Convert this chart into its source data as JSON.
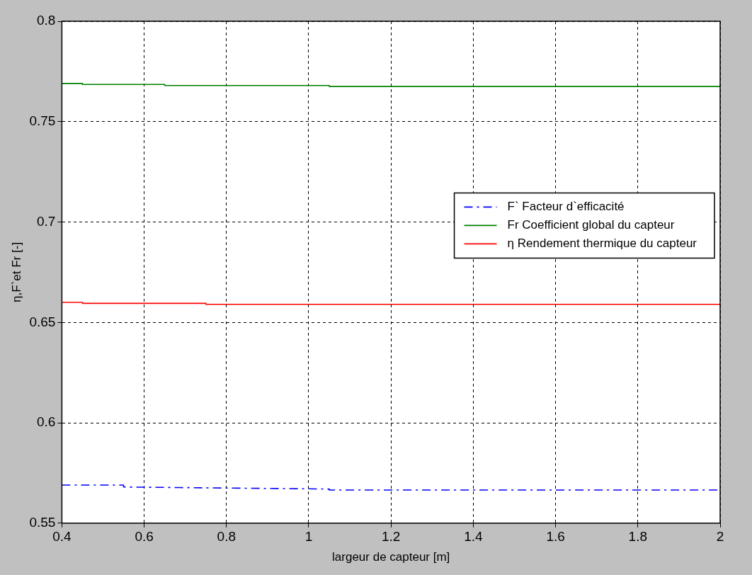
{
  "chart_data": {
    "type": "line",
    "xlabel": "largeur de capteur [m]",
    "ylabel": "η,F`et Fr [-]",
    "xlim": [
      0.4,
      2
    ],
    "xticks": [
      0.4,
      0.6,
      0.8,
      1,
      1.2,
      1.4,
      1.6,
      1.8,
      2
    ],
    "ylim": [
      0.55,
      0.8
    ],
    "yticks": [
      0.55,
      0.6,
      0.65,
      0.7,
      0.75,
      0.8
    ],
    "grid": true,
    "legend": "right",
    "marker": "none",
    "series": [
      {
        "name": "F` Facteur d`efficacité",
        "color": "#0000ff",
        "line_style": "dashed",
        "x": [
          0.4,
          0.55,
          0.55,
          1.05,
          1.05,
          2
        ],
        "values": [
          0.569,
          0.569,
          0.568,
          0.567,
          0.5665,
          0.5665
        ]
      },
      {
        "name": "Fr Coefficient global du capteur",
        "color": "#008000",
        "line_style": "solid",
        "x": [
          0.4,
          0.45,
          0.45,
          0.65,
          0.65,
          1.05,
          1.05,
          2
        ],
        "values": [
          0.769,
          0.769,
          0.7685,
          0.7685,
          0.768,
          0.768,
          0.7675,
          0.7675
        ]
      },
      {
        "name": "η Rendement thermique du capteur",
        "color": "#ff0000",
        "line_style": "solid",
        "x": [
          0.4,
          0.45,
          0.45,
          0.75,
          0.75,
          2
        ],
        "values": [
          0.66,
          0.66,
          0.6595,
          0.6595,
          0.659,
          0.659
        ]
      }
    ]
  }
}
